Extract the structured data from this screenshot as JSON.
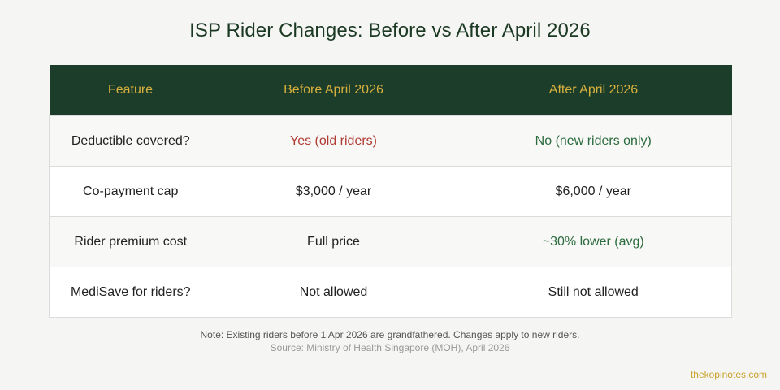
{
  "title": "ISP Rider Changes: Before vs After April 2026",
  "table": {
    "headers": [
      "Feature",
      "Before April 2026",
      "After April 2026"
    ],
    "rows": [
      {
        "feature": "Deductible covered?",
        "before": "Yes (old riders)",
        "after": "No (new riders only)",
        "before_color": "#b03a32",
        "after_color": "#2b6b3d"
      },
      {
        "feature": "Co-payment cap",
        "before": "$3,000 / year",
        "after": "$6,000 / year"
      },
      {
        "feature": "Rider premium cost",
        "before": "Full price",
        "after": "~30% lower (avg)",
        "after_color": "#2b6b3d"
      },
      {
        "feature": "MediSave for riders?",
        "before": "Not allowed",
        "after": "Still not allowed"
      }
    ]
  },
  "note": "Note: Existing riders before 1 Apr 2026 are grandfathered. Changes apply to new riders.",
  "source": "Source: Ministry of Health Singapore (MOH), April 2026",
  "brand": "thekopinotes.com",
  "colors": {
    "header_bg": "#1b3d2a",
    "header_text": "#d8b03d",
    "negative": "#b03a32",
    "positive": "#2b6b3d"
  }
}
